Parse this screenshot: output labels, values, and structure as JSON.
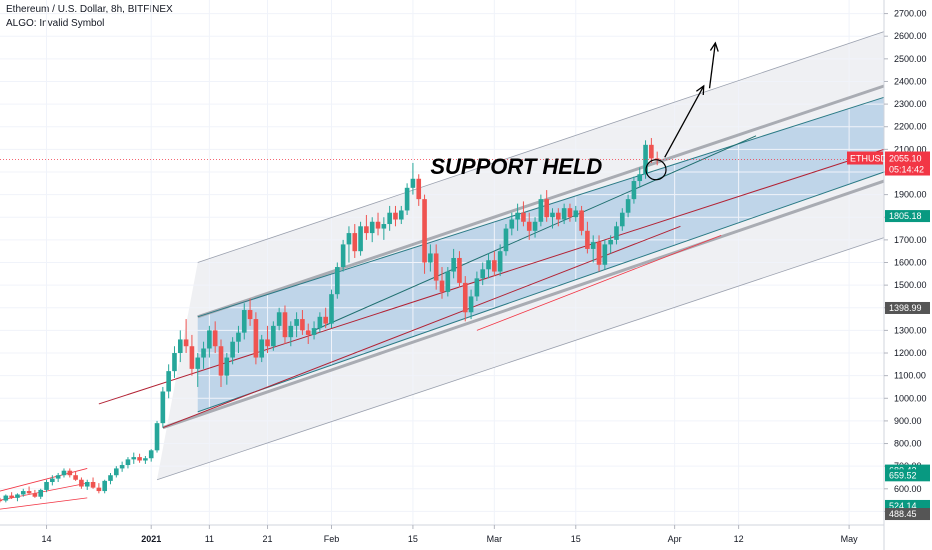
{
  "header": {
    "title": "Ethereum / U.S. Dollar, 8h, BITFINEX",
    "algo": "ALGO: Invalid Symbol"
  },
  "chart_data": {
    "type": "candlestick",
    "symbol": "ETHUSD",
    "annotation": "SUPPORT HELD",
    "ylim": [
      440,
      2760
    ],
    "y_ticks": [
      500,
      600,
      700,
      800,
      900,
      1000,
      1100,
      1200,
      1300,
      1400,
      1500,
      1600,
      1700,
      1800,
      1900,
      2000,
      2100,
      2200,
      2300,
      2400,
      2500,
      2600,
      2700
    ],
    "x_ticks": [
      "14",
      "2021",
      "11",
      "21",
      "Feb",
      "15",
      "Mar",
      "15",
      "Apr",
      "12",
      "May"
    ],
    "x_tick_days": [
      -18,
      0,
      10,
      20,
      31,
      45,
      59,
      73,
      90,
      101,
      120
    ],
    "xlim": [
      -26,
      126
    ],
    "price_tags": [
      {
        "label": "ETHUSD",
        "value": "2055.10",
        "sub": "05:14:42",
        "price": 2055.1,
        "color": "#f23645"
      },
      {
        "label": "",
        "value": "1805.18",
        "sub": "",
        "price": 1805.18,
        "color": "#089981"
      },
      {
        "label": "",
        "value": "1398.99",
        "sub": "",
        "price": 1398.99,
        "color": "#555555"
      },
      {
        "label": "",
        "value": "680.42",
        "sub": "",
        "price": 680.42,
        "color": "#089981"
      },
      {
        "label": "",
        "value": "659.52",
        "sub": "",
        "price": 659.52,
        "color": "#089981"
      },
      {
        "label": "",
        "value": "524.14",
        "sub": "",
        "price": 524.14,
        "color": "#089981"
      },
      {
        "label": "",
        "value": "488.45",
        "sub": "",
        "price": 488.45,
        "color": "#555555"
      }
    ],
    "candles": [
      [
        -26,
        550,
        560,
        540,
        548
      ],
      [
        -25,
        548,
        575,
        540,
        570
      ],
      [
        -24,
        570,
        585,
        555,
        560
      ],
      [
        -23,
        560,
        580,
        545,
        575
      ],
      [
        -22,
        575,
        600,
        565,
        590
      ],
      [
        -21,
        590,
        610,
        575,
        580
      ],
      [
        -20,
        580,
        595,
        560,
        565
      ],
      [
        -19,
        565,
        600,
        555,
        595
      ],
      [
        -18,
        595,
        640,
        585,
        630
      ],
      [
        -17,
        630,
        660,
        615,
        645
      ],
      [
        -16,
        645,
        670,
        630,
        660
      ],
      [
        -15,
        660,
        690,
        650,
        680
      ],
      [
        -14,
        680,
        690,
        650,
        660
      ],
      [
        -13,
        660,
        675,
        635,
        640
      ],
      [
        -12,
        640,
        650,
        600,
        610
      ],
      [
        -11,
        610,
        640,
        595,
        630
      ],
      [
        -10,
        630,
        650,
        600,
        605
      ],
      [
        -9,
        605,
        625,
        580,
        590
      ],
      [
        -8,
        590,
        640,
        580,
        635
      ],
      [
        -7,
        635,
        670,
        620,
        660
      ],
      [
        -6,
        660,
        700,
        650,
        690
      ],
      [
        -5,
        690,
        720,
        675,
        705
      ],
      [
        -4,
        705,
        740,
        690,
        730
      ],
      [
        -3,
        730,
        760,
        710,
        740
      ],
      [
        -2,
        740,
        755,
        715,
        725
      ],
      [
        -1,
        725,
        745,
        710,
        735
      ],
      [
        0,
        735,
        775,
        720,
        770
      ],
      [
        1,
        770,
        900,
        760,
        890
      ],
      [
        2,
        890,
        1050,
        870,
        1030
      ],
      [
        3,
        1030,
        1150,
        1000,
        1120
      ],
      [
        4,
        1120,
        1230,
        1090,
        1200
      ],
      [
        5,
        1200,
        1300,
        1160,
        1260
      ],
      [
        6,
        1260,
        1350,
        1200,
        1230
      ],
      [
        7,
        1230,
        1280,
        1100,
        1130
      ],
      [
        8,
        1130,
        1200,
        1050,
        1180
      ],
      [
        9,
        1180,
        1250,
        1130,
        1220
      ],
      [
        10,
        1220,
        1320,
        1180,
        1300
      ],
      [
        11,
        1300,
        1340,
        1200,
        1230
      ],
      [
        12,
        1230,
        1260,
        1050,
        1100
      ],
      [
        13,
        1100,
        1200,
        1060,
        1180
      ],
      [
        14,
        1180,
        1270,
        1150,
        1250
      ],
      [
        15,
        1250,
        1320,
        1200,
        1290
      ],
      [
        16,
        1290,
        1420,
        1260,
        1390
      ],
      [
        17,
        1390,
        1440,
        1320,
        1350
      ],
      [
        18,
        1350,
        1380,
        1150,
        1180
      ],
      [
        19,
        1180,
        1280,
        1160,
        1260
      ],
      [
        20,
        1260,
        1320,
        1200,
        1230
      ],
      [
        21,
        1230,
        1340,
        1210,
        1320
      ],
      [
        22,
        1320,
        1400,
        1300,
        1380
      ],
      [
        23,
        1380,
        1410,
        1240,
        1270
      ],
      [
        24,
        1270,
        1340,
        1230,
        1320
      ],
      [
        25,
        1320,
        1380,
        1270,
        1350
      ],
      [
        26,
        1350,
        1390,
        1280,
        1300
      ],
      [
        27,
        1300,
        1330,
        1240,
        1280
      ],
      [
        28,
        1280,
        1340,
        1260,
        1310
      ],
      [
        29,
        1310,
        1380,
        1290,
        1360
      ],
      [
        30,
        1360,
        1400,
        1310,
        1330
      ],
      [
        31,
        1330,
        1480,
        1310,
        1460
      ],
      [
        32,
        1460,
        1600,
        1440,
        1580
      ],
      [
        33,
        1580,
        1700,
        1560,
        1680
      ],
      [
        34,
        1680,
        1760,
        1600,
        1730
      ],
      [
        35,
        1730,
        1770,
        1620,
        1650
      ],
      [
        36,
        1650,
        1780,
        1630,
        1760
      ],
      [
        37,
        1760,
        1810,
        1700,
        1730
      ],
      [
        38,
        1730,
        1800,
        1690,
        1780
      ],
      [
        39,
        1780,
        1820,
        1720,
        1750
      ],
      [
        40,
        1750,
        1800,
        1700,
        1770
      ],
      [
        41,
        1770,
        1850,
        1740,
        1820
      ],
      [
        42,
        1820,
        1850,
        1760,
        1790
      ],
      [
        43,
        1790,
        1850,
        1770,
        1830
      ],
      [
        44,
        1830,
        1950,
        1810,
        1930
      ],
      [
        45,
        1930,
        2040,
        1900,
        1970
      ],
      [
        46,
        1970,
        1990,
        1850,
        1880
      ],
      [
        47,
        1880,
        1900,
        1550,
        1600
      ],
      [
        48,
        1600,
        1680,
        1560,
        1640
      ],
      [
        49,
        1640,
        1680,
        1480,
        1520
      ],
      [
        50,
        1520,
        1580,
        1440,
        1470
      ],
      [
        51,
        1470,
        1580,
        1450,
        1560
      ],
      [
        52,
        1560,
        1660,
        1530,
        1620
      ],
      [
        53,
        1620,
        1650,
        1490,
        1510
      ],
      [
        54,
        1510,
        1540,
        1340,
        1380
      ],
      [
        55,
        1380,
        1480,
        1350,
        1450
      ],
      [
        56,
        1450,
        1560,
        1430,
        1530
      ],
      [
        57,
        1530,
        1600,
        1500,
        1570
      ],
      [
        58,
        1570,
        1640,
        1530,
        1610
      ],
      [
        59,
        1610,
        1650,
        1540,
        1560
      ],
      [
        60,
        1560,
        1680,
        1540,
        1650
      ],
      [
        61,
        1650,
        1770,
        1630,
        1750
      ],
      [
        62,
        1750,
        1820,
        1720,
        1790
      ],
      [
        63,
        1790,
        1860,
        1740,
        1820
      ],
      [
        64,
        1820,
        1870,
        1760,
        1780
      ],
      [
        65,
        1780,
        1820,
        1700,
        1740
      ],
      [
        66,
        1740,
        1800,
        1710,
        1780
      ],
      [
        67,
        1780,
        1900,
        1760,
        1880
      ],
      [
        68,
        1880,
        1920,
        1780,
        1800
      ],
      [
        69,
        1800,
        1840,
        1750,
        1820
      ],
      [
        70,
        1820,
        1840,
        1760,
        1790
      ],
      [
        71,
        1790,
        1860,
        1770,
        1840
      ],
      [
        72,
        1840,
        1860,
        1780,
        1800
      ],
      [
        73,
        1800,
        1850,
        1780,
        1830
      ],
      [
        74,
        1830,
        1850,
        1720,
        1740
      ],
      [
        75,
        1740,
        1780,
        1640,
        1660
      ],
      [
        76,
        1660,
        1720,
        1600,
        1690
      ],
      [
        77,
        1690,
        1720,
        1560,
        1590
      ],
      [
        78,
        1590,
        1700,
        1570,
        1680
      ],
      [
        79,
        1680,
        1720,
        1640,
        1700
      ],
      [
        80,
        1700,
        1780,
        1680,
        1760
      ],
      [
        81,
        1760,
        1840,
        1740,
        1820
      ],
      [
        82,
        1820,
        1900,
        1800,
        1880
      ],
      [
        83,
        1880,
        1980,
        1860,
        1960
      ],
      [
        84,
        1960,
        2020,
        1930,
        1990
      ],
      [
        85,
        1990,
        2140,
        1970,
        2120
      ],
      [
        86,
        2120,
        2150,
        2040,
        2060
      ],
      [
        87,
        2060,
        2090,
        2030,
        2055
      ]
    ]
  }
}
